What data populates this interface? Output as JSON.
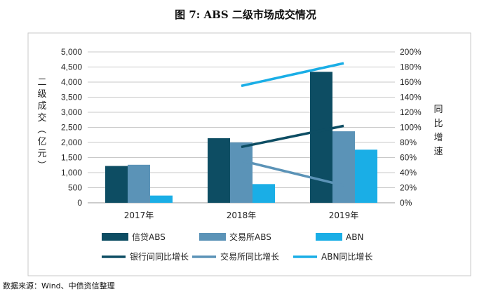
{
  "chart_data": {
    "type": "bar",
    "title": "图 7: ABS 二级市场成交情况",
    "categories": [
      "2017年",
      "2018年",
      "2019年"
    ],
    "series": [
      {
        "name": "信贷ABS",
        "type": "bar",
        "axis": "left",
        "color": "#0d4d63",
        "values": [
          1220,
          2140,
          4340
        ]
      },
      {
        "name": "交易所ABS",
        "type": "bar",
        "axis": "left",
        "color": "#5b93b7",
        "values": [
          1260,
          2000,
          2370
        ]
      },
      {
        "name": "ABN",
        "type": "bar",
        "axis": "left",
        "color": "#1aaee6",
        "values": [
          240,
          620,
          1760
        ]
      },
      {
        "name": "银行间同比增长",
        "type": "line",
        "axis": "right",
        "color": "#0d4d63",
        "values": [
          null,
          74,
          102
        ]
      },
      {
        "name": "交易所同比增长",
        "type": "line",
        "axis": "right",
        "color": "#5b93b7",
        "values": [
          null,
          56,
          23
        ]
      },
      {
        "name": "ABN同比增长",
        "type": "line",
        "axis": "right",
        "color": "#1aaee6",
        "values": [
          null,
          155,
          185
        ]
      }
    ],
    "y_left": {
      "label": "二级成交（亿元）",
      "lim": [
        0,
        5000
      ],
      "ticks": [
        "5,000",
        "4,500",
        "4,000",
        "3,500",
        "3,000",
        "2,500",
        "2,000",
        "1,500",
        "1,000",
        "500",
        "0"
      ]
    },
    "y_right": {
      "label": "同比增速",
      "lim": [
        0,
        200
      ],
      "ticks": [
        "200%",
        "180%",
        "160%",
        "140%",
        "120%",
        "100%",
        "80%",
        "60%",
        "40%",
        "20%",
        "0%"
      ]
    },
    "grid": true,
    "legend": "bottom",
    "source": "数据来源：Wind、中债资信整理"
  }
}
